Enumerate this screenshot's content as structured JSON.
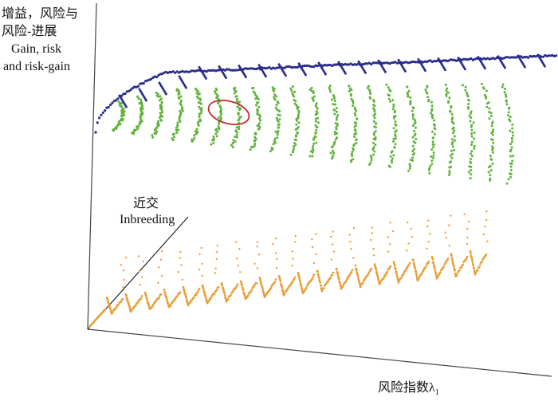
{
  "vertical_axis": {
    "label_lines": [
      "增益，风险与",
      "风险-进展",
      "Gain, risk",
      "and risk-gain"
    ]
  },
  "depth_axis": {
    "label_lines": [
      "近交",
      "Inbreeding"
    ]
  },
  "horizontal_axis": {
    "label": "风险指数λ",
    "subscript": "1"
  }
}
